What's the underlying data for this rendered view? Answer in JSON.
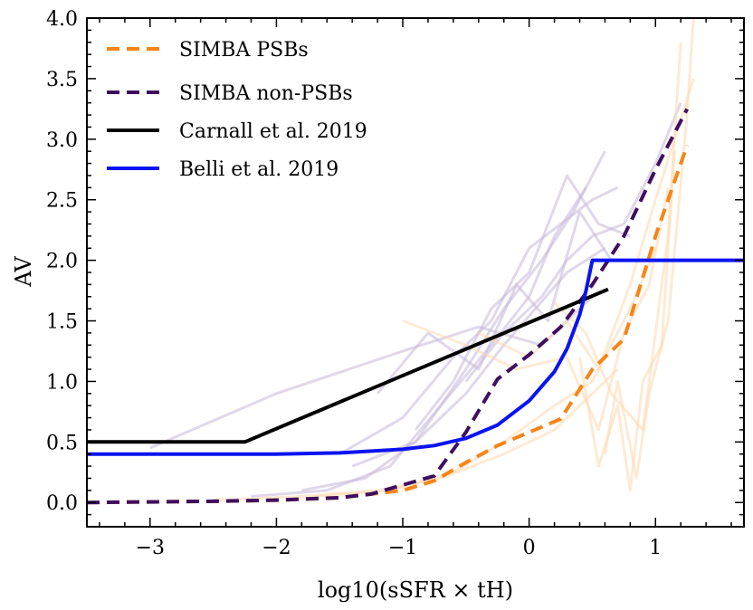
{
  "chart_data": {
    "type": "line",
    "title": "",
    "xlabel": "log10(sSFR × tH)",
    "ylabel": "AV",
    "xlim": [
      -3.5,
      1.7
    ],
    "ylim": [
      -0.2,
      4.0
    ],
    "xticks": [
      -3,
      -2,
      -1,
      0,
      1
    ],
    "xtick_labels": [
      "−3",
      "−2",
      "−1",
      "0",
      "1"
    ],
    "yticks": [
      0.0,
      0.5,
      1.0,
      1.5,
      2.0,
      2.5,
      3.0,
      3.5,
      4.0
    ],
    "ytick_labels": [
      "0.0",
      "0.5",
      "1.0",
      "1.5",
      "2.0",
      "2.5",
      "3.0",
      "3.5",
      "4.0"
    ],
    "legend_position": "top-left",
    "colors": {
      "psb": "#f58518",
      "nonpsb": "#3f0f5f",
      "carnall": "#000000",
      "belli": "#0a14f0",
      "psb_faint": "#fdd8b0",
      "nonpsb_faint": "#c6b8d8"
    },
    "series": [
      {
        "name": "SIMBA PSBs",
        "style": "dashed",
        "color_key": "psb",
        "x": [
          -3.5,
          -2.5,
          -2.0,
          -1.5,
          -1.0,
          -0.75,
          -0.5,
          -0.25,
          0.0,
          0.25,
          0.5,
          0.75,
          1.0,
          1.25
        ],
        "y": [
          0.0,
          0.01,
          0.02,
          0.04,
          0.1,
          0.18,
          0.33,
          0.47,
          0.58,
          0.69,
          1.1,
          1.35,
          2.2,
          2.95
        ]
      },
      {
        "name": "SIMBA non-PSBs",
        "style": "dashed",
        "color_key": "nonpsb",
        "x": [
          -3.5,
          -2.5,
          -2.0,
          -1.5,
          -1.25,
          -0.75,
          -0.5,
          -0.25,
          0.0,
          0.25,
          0.5,
          0.75,
          1.0,
          1.25
        ],
        "y": [
          0.0,
          0.01,
          0.02,
          0.04,
          0.07,
          0.22,
          0.58,
          1.02,
          1.22,
          1.45,
          1.8,
          2.2,
          2.75,
          3.25
        ]
      },
      {
        "name": "Carnall et al. 2019",
        "style": "solid",
        "color_key": "carnall",
        "x": [
          -3.5,
          -2.25,
          0.625
        ],
        "y": [
          0.5,
          0.5,
          1.76
        ]
      },
      {
        "name": "Belli et al. 2019",
        "style": "solid",
        "color_key": "belli",
        "x": [
          -3.5,
          -2.0,
          -1.5,
          -1.0,
          -0.75,
          -0.5,
          -0.25,
          0.0,
          0.2,
          0.3,
          0.4,
          0.45,
          0.5,
          1.7
        ],
        "y": [
          0.4,
          0.4,
          0.41,
          0.44,
          0.47,
          0.53,
          0.64,
          0.84,
          1.08,
          1.27,
          1.55,
          1.75,
          2.0,
          2.0
        ]
      }
    ],
    "background_tracks": [
      {
        "group": "nonpsb",
        "x": [
          -2.2,
          -1.6,
          -1.1,
          -0.7,
          -0.3,
          0.0,
          0.2,
          0.45
        ],
        "y": [
          0.05,
          0.1,
          0.3,
          0.8,
          1.3,
          1.7,
          2.2,
          2.6
        ]
      },
      {
        "group": "nonpsb",
        "x": [
          -1.8,
          -1.3,
          -0.9,
          -0.5,
          -0.2,
          0.1,
          0.35,
          0.6
        ],
        "y": [
          0.1,
          0.2,
          0.5,
          1.1,
          1.6,
          2.0,
          2.4,
          2.9
        ]
      },
      {
        "group": "nonpsb",
        "x": [
          -1.5,
          -1.0,
          -0.6,
          -0.3,
          0.0,
          0.25,
          0.5,
          0.7
        ],
        "y": [
          0.4,
          0.7,
          1.2,
          1.5,
          2.1,
          2.3,
          2.5,
          2.6
        ]
      },
      {
        "group": "nonpsb",
        "x": [
          -1.2,
          -0.8,
          -0.4,
          -0.1,
          0.15,
          0.4,
          0.65
        ],
        "y": [
          0.9,
          1.4,
          1.1,
          1.8,
          1.5,
          2.4,
          2.0
        ]
      },
      {
        "group": "nonpsb",
        "x": [
          -3.0,
          -2.0,
          -1.0,
          -0.4,
          0.1,
          0.5
        ],
        "y": [
          0.45,
          0.9,
          1.25,
          1.45,
          1.3,
          1.7
        ]
      },
      {
        "group": "nonpsb",
        "x": [
          -0.9,
          -0.6,
          -0.3,
          0.0,
          0.3,
          0.55,
          0.8
        ],
        "y": [
          0.6,
          1.0,
          1.6,
          1.9,
          2.7,
          2.3,
          2.2
        ]
      },
      {
        "group": "nonpsb",
        "x": [
          -1.4,
          -0.9,
          -0.5,
          -0.2,
          0.05,
          0.3,
          0.6
        ],
        "y": [
          0.3,
          0.5,
          0.9,
          1.3,
          1.6,
          1.9,
          2.1
        ]
      },
      {
        "group": "nonpsb",
        "x": [
          -0.5,
          -0.2,
          0.1,
          0.3,
          0.5,
          0.75,
          1.0,
          1.2
        ],
        "y": [
          1.0,
          1.4,
          1.7,
          2.0,
          2.2,
          2.3,
          2.8,
          3.3
        ]
      },
      {
        "group": "psb",
        "x": [
          -2.5,
          -1.8,
          -1.2,
          -0.7,
          -0.2,
          0.2,
          0.5,
          0.7
        ],
        "y": [
          0.02,
          0.05,
          0.1,
          0.2,
          0.4,
          0.6,
          0.9,
          1.1
        ]
      },
      {
        "group": "psb",
        "x": [
          -1.7,
          -1.1,
          -0.6,
          -0.2,
          0.2,
          0.5,
          0.8,
          1.0
        ],
        "y": [
          0.05,
          0.1,
          0.25,
          0.5,
          0.8,
          1.0,
          1.6,
          2.1
        ]
      },
      {
        "group": "psb",
        "x": [
          -1.0,
          -0.5,
          -0.1,
          0.3,
          0.55,
          0.75,
          0.95,
          1.1
        ],
        "y": [
          1.5,
          1.3,
          1.1,
          1.2,
          0.6,
          1.4,
          1.8,
          2.6
        ]
      },
      {
        "group": "psb",
        "x": [
          0.4,
          0.55,
          0.7,
          0.8,
          0.9,
          1.05,
          1.15
        ],
        "y": [
          1.2,
          0.3,
          0.8,
          0.1,
          1.0,
          1.3,
          2.9
        ]
      },
      {
        "group": "psb",
        "x": [
          0.6,
          0.7,
          0.85,
          0.95,
          1.1,
          1.25,
          1.3
        ],
        "y": [
          0.4,
          1.0,
          0.2,
          0.9,
          1.5,
          3.2,
          4.0
        ]
      },
      {
        "group": "psb",
        "x": [
          -0.4,
          0.0,
          0.3,
          0.55,
          0.8,
          1.0,
          1.3
        ],
        "y": [
          1.4,
          1.2,
          1.5,
          1.1,
          1.8,
          2.5,
          3.5
        ]
      },
      {
        "group": "psb",
        "x": [
          0.2,
          0.45,
          0.65,
          0.9,
          1.1,
          1.2
        ],
        "y": [
          1.65,
          1.4,
          0.9,
          0.6,
          2.2,
          3.8
        ]
      }
    ]
  }
}
